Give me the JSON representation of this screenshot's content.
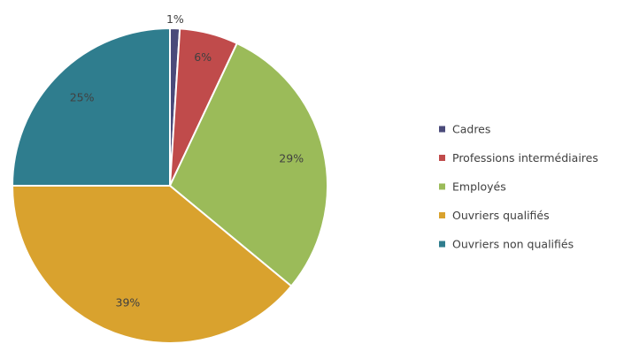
{
  "chart_data": {
    "type": "pie",
    "title": "",
    "categories": [
      "Cadres",
      "Professions intermédiaires",
      "Employés",
      "Ouvriers qualifiés",
      "Ouvriers non qualifiés"
    ],
    "values": [
      1,
      6,
      29,
      39,
      25
    ],
    "value_labels": [
      "1%",
      "6%",
      "29%",
      "39%",
      "25%"
    ],
    "colors": [
      "#4a4a7a",
      "#c04b4b",
      "#9bbb59",
      "#d9a22e",
      "#2f7d8e"
    ],
    "start_angle_deg": 0,
    "direction": "clockwise",
    "legend_position": "right"
  }
}
